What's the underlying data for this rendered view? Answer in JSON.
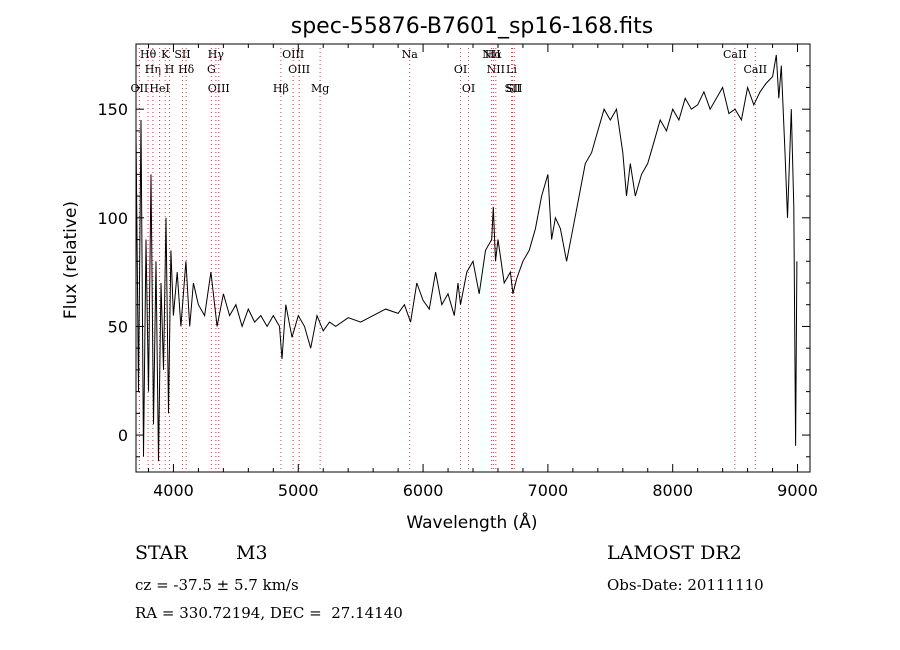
{
  "chart_data": {
    "type": "line",
    "title": "spec-55876-B7601_sp16-168.fits",
    "xlabel": "Wavelength (Å)",
    "ylabel": "Flux (relative)",
    "xlim": [
      3700,
      9100
    ],
    "ylim": [
      -17,
      180
    ],
    "xticks": [
      4000,
      5000,
      6000,
      7000,
      8000,
      9000
    ],
    "yticks": [
      0,
      50,
      100,
      150
    ],
    "series": [
      {
        "color": "#000000",
        "x": [
          3700,
          3720,
          3740,
          3760,
          3780,
          3800,
          3820,
          3840,
          3860,
          3880,
          3900,
          3920,
          3940,
          3960,
          3980,
          4000,
          4030,
          4060,
          4100,
          4130,
          4160,
          4200,
          4250,
          4300,
          4350,
          4400,
          4450,
          4500,
          4550,
          4600,
          4650,
          4700,
          4750,
          4800,
          4850,
          4870,
          4900,
          4950,
          5000,
          5050,
          5100,
          5150,
          5200,
          5250,
          5300,
          5400,
          5500,
          5600,
          5700,
          5800,
          5850,
          5900,
          5950,
          6000,
          6050,
          6100,
          6150,
          6200,
          6250,
          6280,
          6300,
          6350,
          6400,
          6450,
          6500,
          6550,
          6563,
          6580,
          6600,
          6650,
          6700,
          6720,
          6750,
          6800,
          6850,
          6900,
          6950,
          7000,
          7030,
          7060,
          7100,
          7150,
          7200,
          7250,
          7300,
          7350,
          7400,
          7450,
          7500,
          7550,
          7600,
          7630,
          7660,
          7700,
          7750,
          7800,
          7850,
          7900,
          7950,
          8000,
          8050,
          8100,
          8150,
          8200,
          8250,
          8300,
          8350,
          8400,
          8450,
          8500,
          8550,
          8600,
          8650,
          8700,
          8750,
          8800,
          8830,
          8850,
          8870,
          8900,
          8920,
          8950,
          8970,
          8985,
          8995
        ],
        "y": [
          140,
          20,
          145,
          -10,
          90,
          20,
          120,
          5,
          80,
          -12,
          70,
          30,
          100,
          10,
          85,
          55,
          75,
          50,
          80,
          50,
          70,
          60,
          55,
          75,
          50,
          65,
          55,
          60,
          50,
          58,
          52,
          55,
          50,
          55,
          50,
          35,
          60,
          45,
          55,
          50,
          40,
          55,
          48,
          52,
          50,
          54,
          52,
          55,
          58,
          56,
          60,
          52,
          70,
          62,
          58,
          75,
          60,
          65,
          55,
          70,
          60,
          75,
          80,
          65,
          85,
          90,
          105,
          80,
          90,
          70,
          75,
          65,
          72,
          80,
          85,
          95,
          110,
          120,
          90,
          100,
          95,
          80,
          95,
          110,
          125,
          130,
          140,
          150,
          145,
          150,
          130,
          110,
          125,
          110,
          120,
          125,
          135,
          145,
          140,
          150,
          145,
          155,
          150,
          152,
          158,
          150,
          155,
          160,
          148,
          150,
          145,
          160,
          152,
          158,
          162,
          165,
          175,
          155,
          170,
          130,
          100,
          150,
          105,
          -5,
          80
        ]
      }
    ],
    "lines": [
      {
        "name": "Hθ",
        "x": 3797
      },
      {
        "name": "Hη",
        "x": 3835
      },
      {
        "name": "OII",
        "x": 3727
      },
      {
        "name": "K",
        "x": 3934
      },
      {
        "name": "H",
        "x": 3969
      },
      {
        "name": "HeI",
        "x": 3889
      },
      {
        "name": "SII",
        "x": 4072
      },
      {
        "name": "Hδ",
        "x": 4102
      },
      {
        "name": "OIII",
        "x": 4363
      },
      {
        "name": "Hγ",
        "x": 4340
      },
      {
        "name": "G",
        "x": 4304
      },
      {
        "name": "Hβ",
        "x": 4861
      },
      {
        "name": "OIII",
        "x": 4959
      },
      {
        "name": "OIII",
        "x": 5007
      },
      {
        "name": "Mg",
        "x": 5175
      },
      {
        "name": "Na",
        "x": 5893
      },
      {
        "name": "OI",
        "x": 6300
      },
      {
        "name": "OI",
        "x": 6364
      },
      {
        "name": "Hα",
        "x": 6563
      },
      {
        "name": "NII",
        "x": 6583
      },
      {
        "name": "SII",
        "x": 6717
      },
      {
        "name": "NII",
        "x": 6548
      },
      {
        "name": "Li",
        "x": 6708
      },
      {
        "name": "SII",
        "x": 6731
      },
      {
        "name": "CaII",
        "x": 8498
      },
      {
        "name": "CaII",
        "x": 8662
      }
    ]
  },
  "info": {
    "object_class": "STAR",
    "subclass": "M3",
    "survey": "LAMOST DR2",
    "cz": "cz = -37.5 ± 5.7 km/s",
    "obs_date": "Obs-Date: 20111110",
    "coords": "RA = 330.72194, DEC =  27.14140"
  },
  "colors": {
    "line_marker": "#d04040",
    "spectrum": "#000000"
  }
}
